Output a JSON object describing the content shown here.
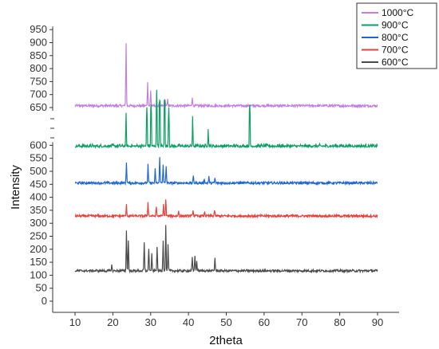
{
  "chart_data": {
    "type": "line",
    "title": "",
    "xlabel": "2theta",
    "ylabel": "Intensity",
    "xlim": [
      10,
      90
    ],
    "ylim": [
      0,
      950
    ],
    "axis_break": "between 600 and 650",
    "x_ticks": [
      "10",
      "20",
      "30",
      "40",
      "50",
      "60",
      "70",
      "80",
      "90"
    ],
    "y_ticks_lower": [
      "0",
      "50",
      "100",
      "150",
      "200",
      "250",
      "300",
      "350",
      "400",
      "450",
      "500",
      "550",
      "600"
    ],
    "y_ticks_upper": [
      "650",
      "700",
      "750",
      "800",
      "850",
      "900",
      "950"
    ],
    "grid": false,
    "legend_position": "top-right",
    "series": [
      {
        "name": "1000°C",
        "color": "#c07fe0",
        "baseline": 657,
        "peaks": [
          [
            23.5,
            900
          ],
          [
            29.2,
            745
          ],
          [
            30.0,
            715
          ],
          [
            33.8,
            685
          ],
          [
            34.5,
            680
          ],
          [
            41.0,
            692
          ]
        ]
      },
      {
        "name": "900°C",
        "color": "#0e9e65",
        "baseline": 597,
        "peaks": [
          [
            23.5,
            625
          ],
          [
            29.0,
            650
          ],
          [
            30.1,
            662
          ],
          [
            31.6,
            718
          ],
          [
            32.4,
            675
          ],
          [
            33.7,
            680
          ],
          [
            34.8,
            652
          ],
          [
            41.1,
            622
          ],
          [
            45.2,
            618
          ],
          [
            56.2,
            658
          ]
        ]
      },
      {
        "name": "800°C",
        "color": "#1e66d6",
        "baseline": 455,
        "peaks": [
          [
            23.6,
            535
          ],
          [
            29.3,
            525
          ],
          [
            31.2,
            508
          ],
          [
            32.4,
            552
          ],
          [
            33.3,
            528
          ],
          [
            34.1,
            520
          ],
          [
            41.3,
            482
          ],
          [
            44.2,
            472
          ],
          [
            45.4,
            478
          ],
          [
            47.0,
            474
          ]
        ]
      },
      {
        "name": "700°C",
        "color": "#e8403a",
        "baseline": 328,
        "peaks": [
          [
            23.6,
            370
          ],
          [
            29.3,
            385
          ],
          [
            31.5,
            365
          ],
          [
            33.4,
            372
          ],
          [
            34.0,
            392
          ],
          [
            37.4,
            348
          ],
          [
            41.2,
            352
          ],
          [
            44.3,
            345
          ],
          [
            46.9,
            352
          ]
        ]
      },
      {
        "name": "600°C",
        "color": "#4a4a4a",
        "baseline": 117,
        "peaks": [
          [
            19.7,
            140
          ],
          [
            23.6,
            270
          ],
          [
            24.1,
            235
          ],
          [
            28.3,
            225
          ],
          [
            29.5,
            205
          ],
          [
            30.3,
            180
          ],
          [
            31.7,
            210
          ],
          [
            33.3,
            235
          ],
          [
            34.0,
            290
          ],
          [
            34.6,
            215
          ],
          [
            41.0,
            170
          ],
          [
            41.7,
            178
          ],
          [
            42.2,
            155
          ],
          [
            47.0,
            168
          ]
        ]
      }
    ]
  }
}
